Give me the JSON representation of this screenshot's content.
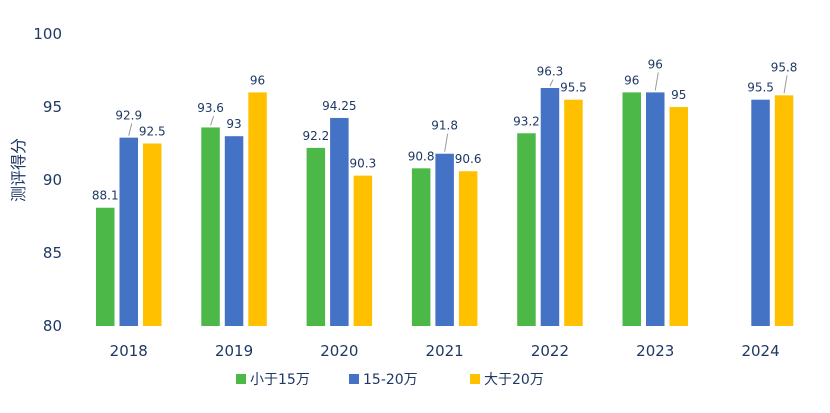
{
  "chart_data": {
    "type": "bar",
    "ylabel": "测评得分",
    "ylim": [
      80,
      100
    ],
    "yticks": [
      80,
      85,
      90,
      95,
      100
    ],
    "grid": false,
    "legend_position": "bottom",
    "categories": [
      "2018",
      "2019",
      "2020",
      "2021",
      "2022",
      "2023",
      "2024"
    ],
    "series": [
      {
        "name": "小于15万",
        "color": "#4cb848",
        "values": [
          88.1,
          93.6,
          92.2,
          90.8,
          93.2,
          96,
          null
        ],
        "labels": [
          "88.1",
          "93.6",
          "92.2",
          "90.8",
          "93.2",
          "96",
          ""
        ]
      },
      {
        "name": "15-20万",
        "color": "#4472c4",
        "values": [
          92.9,
          93,
          94.25,
          91.8,
          96.3,
          96,
          95.5
        ],
        "labels": [
          "92.9",
          "93",
          "94.25",
          "91.8",
          "96.3",
          "96",
          "95.5"
        ]
      },
      {
        "name": "大于20万",
        "color": "#ffc000",
        "values": [
          92.5,
          96,
          90.3,
          90.6,
          95.5,
          95,
          95.8
        ],
        "labels": [
          "92.5",
          "96",
          "90.3",
          "90.6",
          "95.5",
          "95",
          "95.8"
        ]
      }
    ]
  }
}
